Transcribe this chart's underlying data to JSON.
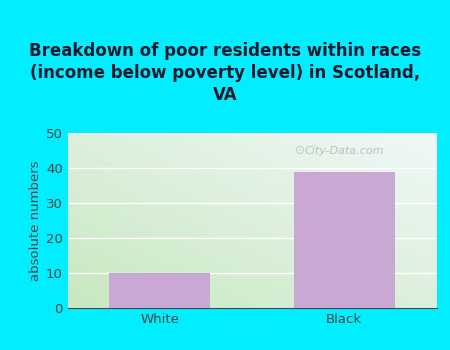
{
  "title": "Breakdown of poor residents within races\n(income below poverty level) in Scotland,\nVA",
  "categories": [
    "White",
    "Black"
  ],
  "values": [
    10,
    39
  ],
  "bar_color": "#c9a8d4",
  "ylabel": "absolute numbers",
  "ylim": [
    0,
    50
  ],
  "yticks": [
    0,
    10,
    20,
    30,
    40,
    50
  ],
  "background_outer": "#00eeff",
  "bg_bottom_left": "#c8e8c0",
  "bg_top_right": "#f0f8f8",
  "grid_color": "#ffffff",
  "title_color": "#1a1a2e",
  "axis_color": "#444444",
  "watermark": "City-Data.com",
  "title_fontsize": 12,
  "label_fontsize": 9.5,
  "tick_fontsize": 9.5,
  "bar_width": 0.55
}
